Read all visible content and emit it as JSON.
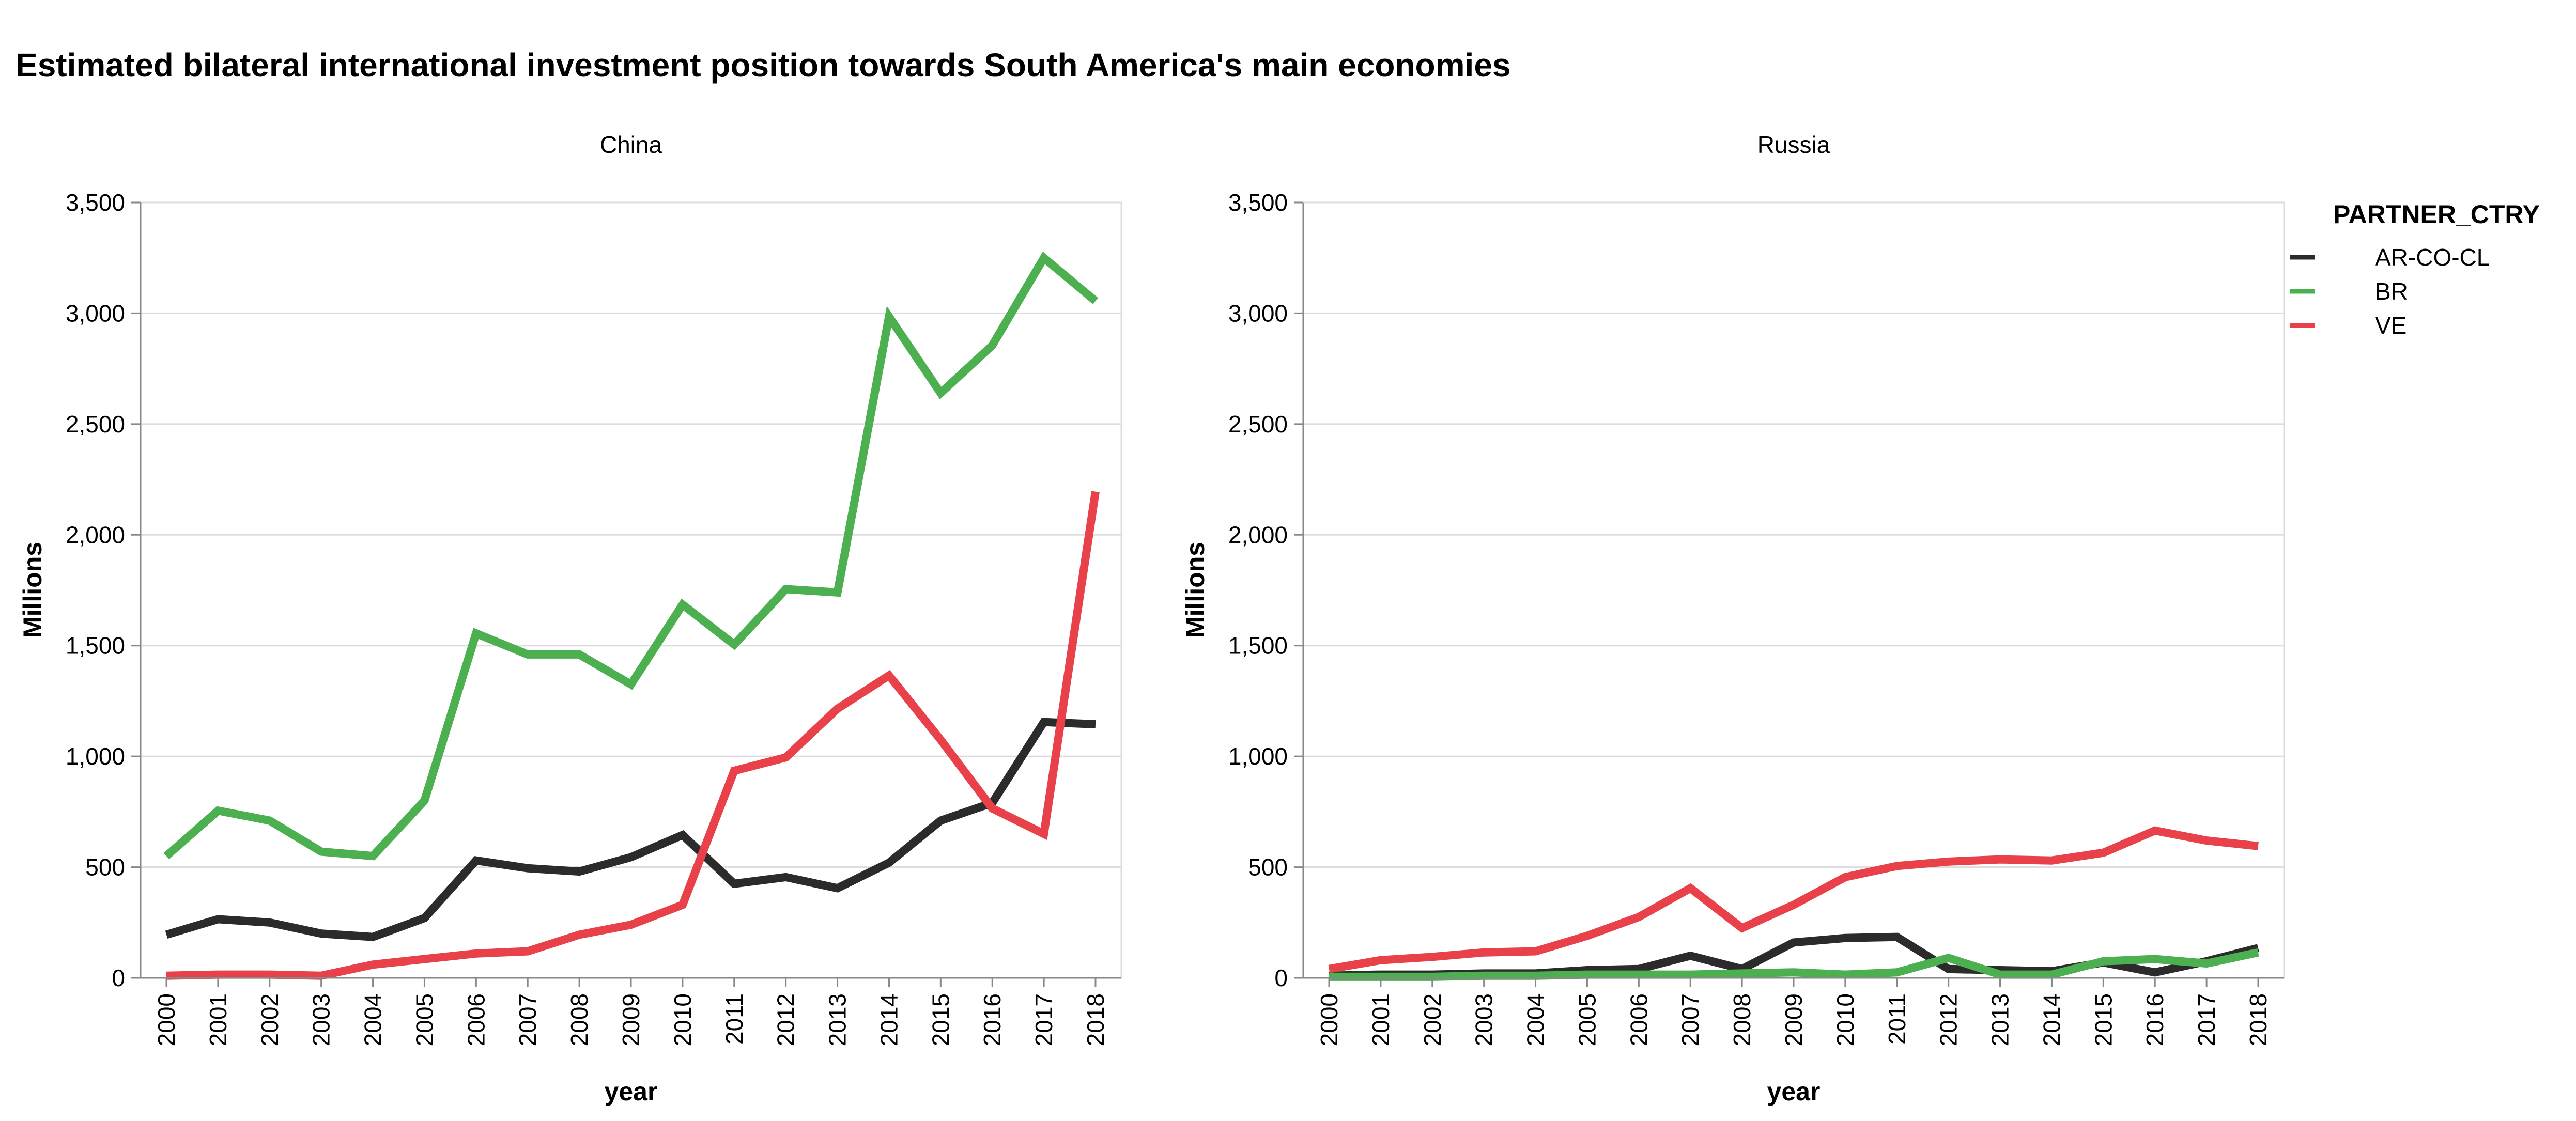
{
  "colors": {
    "AR-CO-CL": "#2b2b2b",
    "BR": "#4caf50",
    "VE": "#e8414a"
  },
  "chart_data": {
    "type": "line",
    "title": "Estimated bilateral international investment position towards South America's main economies",
    "xlabel": "year",
    "ylabel": "Millions",
    "ylim": [
      0,
      3500
    ],
    "yticks": [
      "0",
      "500",
      "1,000",
      "1,500",
      "2,000",
      "2,500",
      "3,000",
      "3,500"
    ],
    "x": [
      "2000",
      "2001",
      "2002",
      "2003",
      "2004",
      "2005",
      "2006",
      "2007",
      "2008",
      "2009",
      "2010",
      "2011",
      "2012",
      "2013",
      "2014",
      "2015",
      "2016",
      "2017",
      "2018"
    ],
    "grid": true,
    "legend": {
      "title": "PARTNER_CTRY",
      "position": "right",
      "entries": [
        "AR-CO-CL",
        "BR",
        "VE"
      ]
    },
    "facets": [
      {
        "title": "China",
        "series": [
          {
            "name": "AR-CO-CL",
            "values": [
              195,
              265,
              250,
              200,
              185,
              270,
              530,
              495,
              480,
              545,
              645,
              425,
              455,
              405,
              520,
              710,
              790,
              1155,
              1145
            ]
          },
          {
            "name": "BR",
            "values": [
              550,
              755,
              710,
              570,
              550,
              800,
              1555,
              1460,
              1460,
              1325,
              1685,
              1505,
              1755,
              1740,
              2985,
              2640,
              2855,
              3250,
              3055
            ]
          },
          {
            "name": "VE",
            "values": [
              10,
              15,
              15,
              10,
              60,
              85,
              110,
              120,
              195,
              240,
              330,
              935,
              995,
              1215,
              1365,
              1075,
              765,
              650,
              2195
            ]
          }
        ]
      },
      {
        "title": "Russia",
        "series": [
          {
            "name": "AR-CO-CL",
            "values": [
              10,
              15,
              15,
              20,
              20,
              35,
              40,
              100,
              40,
              160,
              180,
              185,
              40,
              35,
              30,
              70,
              25,
              75,
              135
            ]
          },
          {
            "name": "BR",
            "values": [
              5,
              5,
              5,
              10,
              10,
              15,
              15,
              15,
              20,
              25,
              15,
              25,
              90,
              15,
              15,
              75,
              85,
              65,
              115
            ]
          },
          {
            "name": "VE",
            "values": [
              40,
              80,
              95,
              115,
              120,
              190,
              275,
              405,
              225,
              330,
              455,
              505,
              525,
              535,
              530,
              565,
              665,
              620,
              595
            ]
          }
        ]
      }
    ]
  }
}
